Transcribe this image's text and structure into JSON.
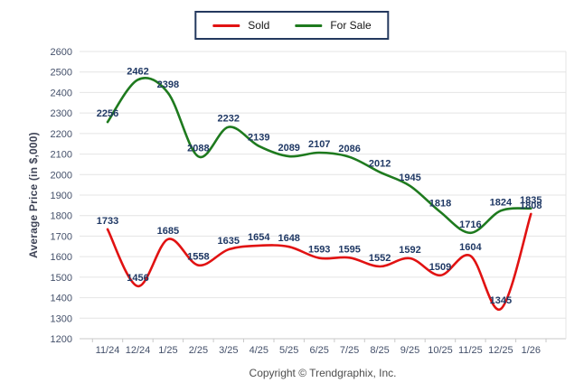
{
  "legend": {
    "items": [
      {
        "label": "Sold",
        "color": "#e11212"
      },
      {
        "label": "For Sale",
        "color": "#1e7a1e"
      }
    ]
  },
  "y_axis_title": "Average Price (in $,000)",
  "footer": {
    "copyright": "Copyright © Trendgraphix, Inc."
  },
  "chart_data": {
    "type": "line",
    "x": [
      "11/24",
      "12/24",
      "1/25",
      "2/25",
      "3/25",
      "4/25",
      "5/25",
      "6/25",
      "7/25",
      "8/25",
      "9/25",
      "10/25",
      "11/25",
      "12/25",
      "1/26"
    ],
    "series": [
      {
        "name": "Sold",
        "color": "#e11212",
        "values": [
          1733,
          1456,
          1685,
          1558,
          1635,
          1654,
          1648,
          1593,
          1595,
          1552,
          1592,
          1509,
          1604,
          1345,
          1808
        ]
      },
      {
        "name": "For Sale",
        "color": "#1e7a1e",
        "values": [
          2256,
          2462,
          2398,
          2088,
          2232,
          2139,
          2089,
          2107,
          2086,
          2012,
          1945,
          1818,
          1716,
          1824,
          1835
        ]
      }
    ],
    "title": "",
    "xlabel": "",
    "ylabel": "Average Price (in $,000)",
    "ylim": [
      1200,
      2600
    ],
    "ytick_step": 100,
    "grid": true,
    "smooth": true,
    "data_labels": true,
    "legend_position": "top",
    "label_color": "#1f3864",
    "axis_tick_color": "#44506a",
    "grid_color": "#e4e4e4",
    "axis_line_color": "#c9c9c9"
  }
}
